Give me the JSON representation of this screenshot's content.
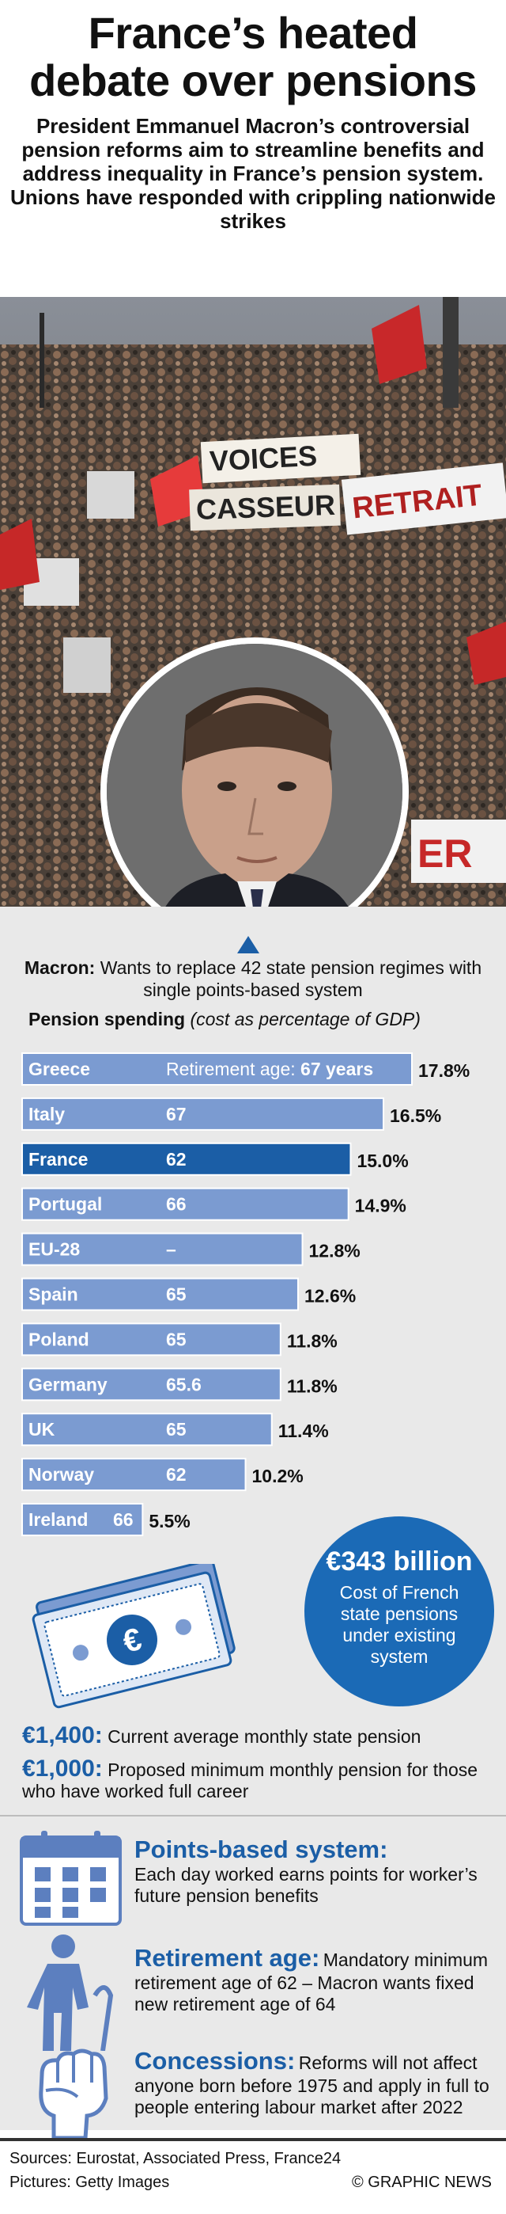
{
  "header": {
    "title_line1": "France’s heated",
    "title_line2": "debate over pensions",
    "subtitle": "President Emmanuel Macron’s controversial pension reforms aim to streamline benefits and address inequality in France’s pension system. Unions have responded with crippling nationwide strikes"
  },
  "macron_note": {
    "label": "Macron:",
    "text": "Wants to replace 42 state pension regimes with single points-based system"
  },
  "chart_title": {
    "main": "Pension spending",
    "note": "(cost as percentage of GDP)"
  },
  "chart_data": {
    "type": "bar",
    "orientation": "horizontal",
    "title": "Pension spending",
    "subtitle": "(cost as percentage of GDP)",
    "retirement_age_label": "Retirement age:",
    "retirement_age_unit": "years",
    "categories": [
      "Greece",
      "Italy",
      "France",
      "Portugal",
      "EU-28",
      "Spain",
      "Poland",
      "Germany",
      "UK",
      "Norway",
      "Ireland"
    ],
    "retirement_age": [
      "67",
      "67",
      "62",
      "66",
      "–",
      "65",
      "65",
      "65.6",
      "65",
      "62",
      "66"
    ],
    "values": [
      17.8,
      16.5,
      15.0,
      14.9,
      12.8,
      12.6,
      11.8,
      11.8,
      11.4,
      10.2,
      5.5
    ],
    "value_labels": [
      "17.8%",
      "16.5%",
      "15.0%",
      "14.9%",
      "12.8%",
      "12.6%",
      "11.8%",
      "11.8%",
      "11.4%",
      "10.2%",
      "5.5%"
    ],
    "highlight": "France",
    "colors": {
      "bar": "#7b9bd1",
      "highlight": "#1b5ea6"
    }
  },
  "cost": {
    "amount": "€343 billion",
    "description": "Cost of French state pensions under existing system"
  },
  "facts": [
    {
      "amount": "€1,400:",
      "text": "Current average monthly state pension"
    },
    {
      "amount": "€1,000:",
      "text": "Proposed minimum monthly pension for those who have worked full career"
    }
  ],
  "blocks": [
    {
      "title": "Points-based system:",
      "text": "Each day worked earns points for worker’s future pension benefits"
    },
    {
      "title": "Retirement age:",
      "text": "Mandatory minimum retirement age of 62 – Macron wants fixed new retirement age of 64"
    },
    {
      "title": "Concessions:",
      "text": "Reforms will not affect anyone born before 1975 and apply in full to people entering labour market after 2022"
    }
  ],
  "footer": {
    "sources": "Sources: Eurostat, Associated Press, France24",
    "pictures": "Pictures: Getty Images",
    "credit": "© GRAPHIC NEWS"
  },
  "photo": {
    "sign1": "VOICES",
    "sign2": "CASSEUR",
    "sign3": "RETRAIT",
    "sign4": "ER"
  }
}
